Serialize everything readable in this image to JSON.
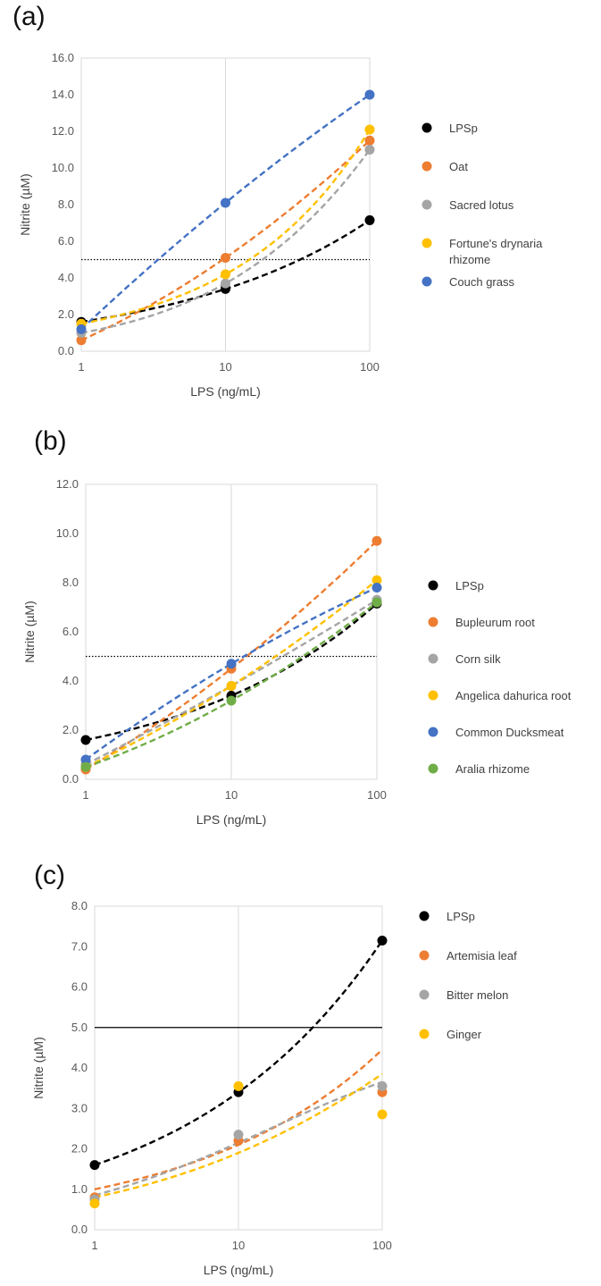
{
  "panels": [
    {
      "label": "(a)"
    },
    {
      "label": "(b)"
    },
    {
      "label": "(c)"
    }
  ],
  "chart_data": [
    {
      "type": "scatter",
      "panel": "(a)",
      "x_scale": "log",
      "xlabel": "LPS (ng/mL)",
      "ylabel": "Nitrite (µM)",
      "x_ticks": [
        1,
        10,
        100
      ],
      "y_ticks": [
        "0.0",
        "2.0",
        "4.0",
        "6.0",
        "8.0",
        "10.0",
        "12.0",
        "14.0",
        "16.0"
      ],
      "xlim": [
        1,
        100
      ],
      "ylim": [
        0,
        16
      ],
      "threshold": {
        "y": 5,
        "style": "dotted"
      },
      "legend_position": "right",
      "grid": "vertical",
      "series": [
        {
          "name": "LPSp",
          "color": "#000000",
          "x": [
            1,
            10,
            100
          ],
          "y": [
            1.6,
            3.4,
            7.15
          ],
          "trend": "exponential",
          "legend_lines": [
            "LPSp"
          ]
        },
        {
          "name": "Oat",
          "color": "#ED7D31",
          "x": [
            1,
            10,
            100
          ],
          "y": [
            0.6,
            5.1,
            11.5
          ],
          "trend": "log",
          "legend_lines": [
            "Oat"
          ]
        },
        {
          "name": "Sacred lotus",
          "color": "#A5A5A5",
          "x": [
            1,
            10,
            100
          ],
          "y": [
            1.0,
            3.7,
            11.0
          ],
          "trend": "exponential",
          "legend_lines": [
            "Sacred lotus"
          ]
        },
        {
          "name": "Fortune's drynaria rhizome",
          "color": "#FFC000",
          "x": [
            1,
            10,
            100
          ],
          "y": [
            1.5,
            4.2,
            12.1
          ],
          "trend": "exponential",
          "legend_lines": [
            "Fortune's drynaria",
            "rhizome"
          ]
        },
        {
          "name": "Couch grass",
          "color": "#4472C4",
          "x": [
            1,
            10,
            100
          ],
          "y": [
            1.2,
            8.1,
            14.0
          ],
          "trend": "log",
          "legend_lines": [
            "Couch grass"
          ]
        }
      ]
    },
    {
      "type": "scatter",
      "panel": "(b)",
      "x_scale": "log",
      "xlabel": "LPS (ng/mL)",
      "ylabel": "Nitrite (µM)",
      "x_ticks": [
        1,
        10,
        100
      ],
      "y_ticks": [
        "0.0",
        "2.0",
        "4.0",
        "6.0",
        "8.0",
        "10.0",
        "12.0"
      ],
      "xlim": [
        1,
        100
      ],
      "ylim": [
        0,
        12
      ],
      "threshold": {
        "y": 5,
        "style": "dotted"
      },
      "legend_position": "right",
      "grid": "vertical",
      "series": [
        {
          "name": "LPSp",
          "color": "#000000",
          "x": [
            1,
            10,
            100
          ],
          "y": [
            1.6,
            3.4,
            7.15
          ],
          "trend": "exponential",
          "legend_lines": [
            "LPSp"
          ]
        },
        {
          "name": "Bupleurum root",
          "color": "#ED7D31",
          "x": [
            1,
            10,
            100
          ],
          "y": [
            0.4,
            4.5,
            9.7
          ],
          "trend": "log",
          "legend_lines": [
            "Bupleurum root"
          ]
        },
        {
          "name": "Corn silk",
          "color": "#A5A5A5",
          "x": [
            1,
            10,
            100
          ],
          "y": [
            0.6,
            3.8,
            7.3
          ],
          "trend": "log",
          "legend_lines": [
            "Corn silk"
          ]
        },
        {
          "name": "Angelica dahurica root",
          "color": "#FFC000",
          "x": [
            1,
            10,
            100
          ],
          "y": [
            0.5,
            3.8,
            8.1
          ],
          "trend": "log",
          "legend_lines": [
            "Angelica dahurica root"
          ]
        },
        {
          "name": "Common Ducksmeat",
          "color": "#4472C4",
          "x": [
            1,
            10,
            100
          ],
          "y": [
            0.8,
            4.7,
            7.8
          ],
          "trend": "log",
          "legend_lines": [
            "Common Ducksmeat"
          ]
        },
        {
          "name": "Aralia rhizome",
          "color": "#70AD47",
          "x": [
            1,
            10,
            100
          ],
          "y": [
            0.5,
            3.2,
            7.2
          ],
          "trend": "log",
          "legend_lines": [
            "Aralia rhizome"
          ]
        }
      ]
    },
    {
      "type": "scatter",
      "panel": "(c)",
      "x_scale": "log",
      "xlabel": "LPS (ng/mL)",
      "ylabel": "Nitrite (µM)",
      "x_ticks": [
        1,
        10,
        100
      ],
      "y_ticks": [
        "0.0",
        "1.0",
        "2.0",
        "3.0",
        "4.0",
        "5.0",
        "6.0",
        "7.0",
        "8.0"
      ],
      "xlim": [
        1,
        100
      ],
      "ylim": [
        0,
        8
      ],
      "threshold": {
        "y": 5,
        "style": "solid"
      },
      "legend_position": "right",
      "grid": "vertical",
      "series": [
        {
          "name": "LPSp",
          "color": "#000000",
          "x": [
            1,
            10,
            100
          ],
          "y": [
            1.6,
            3.4,
            7.15
          ],
          "trend": "exponential",
          "legend_lines": [
            "LPSp"
          ]
        },
        {
          "name": "Artemisia leaf",
          "color": "#ED7D31",
          "x": [
            1,
            10,
            100
          ],
          "y": [
            0.8,
            2.2,
            3.4
          ],
          "trend": "exponential_fit",
          "fit": [
            1.0,
            2.1,
            4.45
          ],
          "legend_lines": [
            "Artemisia leaf"
          ]
        },
        {
          "name": "Bitter melon",
          "color": "#A5A5A5",
          "x": [
            1,
            10,
            100
          ],
          "y": [
            0.75,
            2.35,
            3.55
          ],
          "trend": "exponential_fit",
          "fit": [
            0.85,
            2.15,
            3.65
          ],
          "legend_lines": [
            "Bitter melon"
          ]
        },
        {
          "name": "Ginger",
          "color": "#FFC000",
          "x": [
            1,
            10,
            100
          ],
          "y": [
            0.65,
            3.55,
            2.85
          ],
          "trend": "exponential_fit",
          "fit": [
            0.8,
            1.9,
            3.85
          ],
          "legend_lines": [
            "Ginger"
          ]
        }
      ]
    }
  ]
}
